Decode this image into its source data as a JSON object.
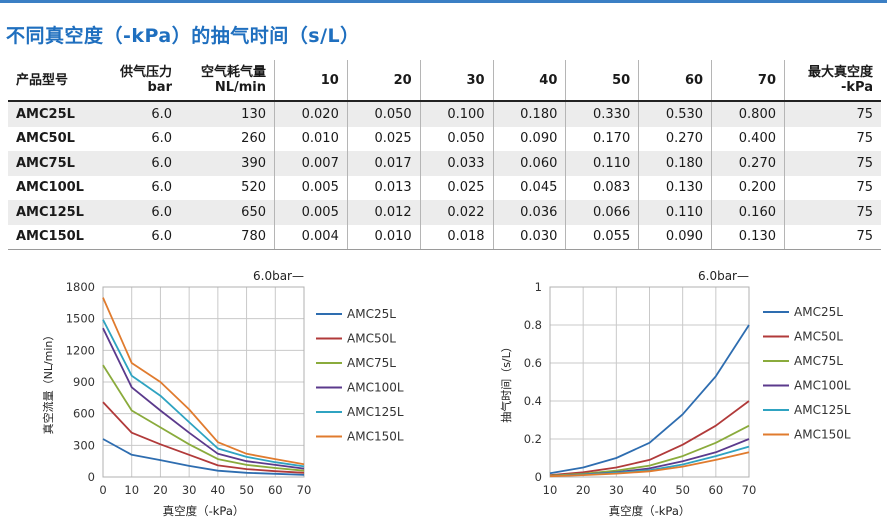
{
  "title": "不同真空度（-kPa）的抽气时间（s/L）",
  "table": {
    "headers": [
      {
        "l1": "产品型号",
        "l2": ""
      },
      {
        "l1": "供气压力",
        "l2": "bar"
      },
      {
        "l1": "空气耗气量",
        "l2": "NL/min"
      },
      {
        "l1": "10",
        "l2": ""
      },
      {
        "l1": "20",
        "l2": ""
      },
      {
        "l1": "30",
        "l2": ""
      },
      {
        "l1": "40",
        "l2": ""
      },
      {
        "l1": "50",
        "l2": ""
      },
      {
        "l1": "60",
        "l2": ""
      },
      {
        "l1": "70",
        "l2": ""
      },
      {
        "l1": "最大真空度",
        "l2": "-kPa"
      }
    ],
    "rows": [
      [
        "AMC25L",
        "6.0",
        "130",
        "0.020",
        "0.050",
        "0.100",
        "0.180",
        "0.330",
        "0.530",
        "0.800",
        "75"
      ],
      [
        "AMC50L",
        "6.0",
        "260",
        "0.010",
        "0.025",
        "0.050",
        "0.090",
        "0.170",
        "0.270",
        "0.400",
        "75"
      ],
      [
        "AMC75L",
        "6.0",
        "390",
        "0.007",
        "0.017",
        "0.033",
        "0.060",
        "0.110",
        "0.180",
        "0.270",
        "75"
      ],
      [
        "AMC100L",
        "6.0",
        "520",
        "0.005",
        "0.013",
        "0.025",
        "0.045",
        "0.083",
        "0.130",
        "0.200",
        "75"
      ],
      [
        "AMC125L",
        "6.0",
        "650",
        "0.005",
        "0.012",
        "0.022",
        "0.036",
        "0.066",
        "0.110",
        "0.160",
        "75"
      ],
      [
        "AMC150L",
        "6.0",
        "780",
        "0.004",
        "0.010",
        "0.018",
        "0.030",
        "0.055",
        "0.090",
        "0.130",
        "75"
      ]
    ]
  },
  "chart_data": [
    {
      "type": "line",
      "pressure_label": "6.0bar—",
      "xlabel": "真空度（-kPa）",
      "ylabel": "真空流量（NL/min）",
      "x": [
        0,
        10,
        20,
        30,
        40,
        50,
        60,
        70
      ],
      "xticks": [
        0,
        10,
        20,
        30,
        40,
        50,
        60,
        70
      ],
      "xlim": [
        0,
        70
      ],
      "ylim": [
        0,
        1800
      ],
      "yticks": [
        0,
        300,
        600,
        900,
        1200,
        1500,
        1800
      ],
      "grid": true,
      "legend_position": "right",
      "series": [
        {
          "name": "AMC25L",
          "color": "#2e6db0",
          "values": [
            360,
            210,
            160,
            105,
            60,
            40,
            30,
            20
          ]
        },
        {
          "name": "AMC50L",
          "color": "#b13a3a",
          "values": [
            710,
            420,
            310,
            210,
            110,
            75,
            55,
            40
          ]
        },
        {
          "name": "AMC75L",
          "color": "#8aab3c",
          "values": [
            1060,
            630,
            470,
            310,
            170,
            115,
            85,
            60
          ]
        },
        {
          "name": "AMC100L",
          "color": "#5b3a8c",
          "values": [
            1410,
            850,
            630,
            420,
            220,
            150,
            115,
            80
          ]
        },
        {
          "name": "AMC125L",
          "color": "#2fa3c1",
          "values": [
            1490,
            960,
            770,
            520,
            270,
            190,
            140,
            100
          ]
        },
        {
          "name": "AMC150L",
          "color": "#e07b2e",
          "values": [
            1700,
            1080,
            900,
            640,
            330,
            220,
            170,
            120
          ]
        }
      ]
    },
    {
      "type": "line",
      "pressure_label": "6.0bar—",
      "xlabel": "真空度（-kPa）",
      "ylabel": "抽气时间（s/L）",
      "x": [
        10,
        20,
        30,
        40,
        50,
        60,
        70
      ],
      "xticks": [
        10,
        20,
        30,
        40,
        50,
        60,
        70
      ],
      "xlim": [
        10,
        70
      ],
      "ylim": [
        0,
        1
      ],
      "yticks": [
        0,
        0.2,
        0.4,
        0.6,
        0.8,
        1
      ],
      "grid": true,
      "legend_position": "right",
      "series": [
        {
          "name": "AMC25L",
          "color": "#2e6db0",
          "values": [
            0.02,
            0.05,
            0.1,
            0.18,
            0.33,
            0.53,
            0.8
          ]
        },
        {
          "name": "AMC50L",
          "color": "#b13a3a",
          "values": [
            0.01,
            0.025,
            0.05,
            0.09,
            0.17,
            0.27,
            0.4
          ]
        },
        {
          "name": "AMC75L",
          "color": "#8aab3c",
          "values": [
            0.007,
            0.017,
            0.033,
            0.06,
            0.11,
            0.18,
            0.27
          ]
        },
        {
          "name": "AMC100L",
          "color": "#5b3a8c",
          "values": [
            0.005,
            0.013,
            0.025,
            0.045,
            0.083,
            0.13,
            0.2
          ]
        },
        {
          "name": "AMC125L",
          "color": "#2fa3c1",
          "values": [
            0.005,
            0.012,
            0.022,
            0.036,
            0.066,
            0.11,
            0.16
          ]
        },
        {
          "name": "AMC150L",
          "color": "#e07b2e",
          "values": [
            0.004,
            0.01,
            0.018,
            0.03,
            0.055,
            0.09,
            0.13
          ]
        }
      ]
    }
  ]
}
